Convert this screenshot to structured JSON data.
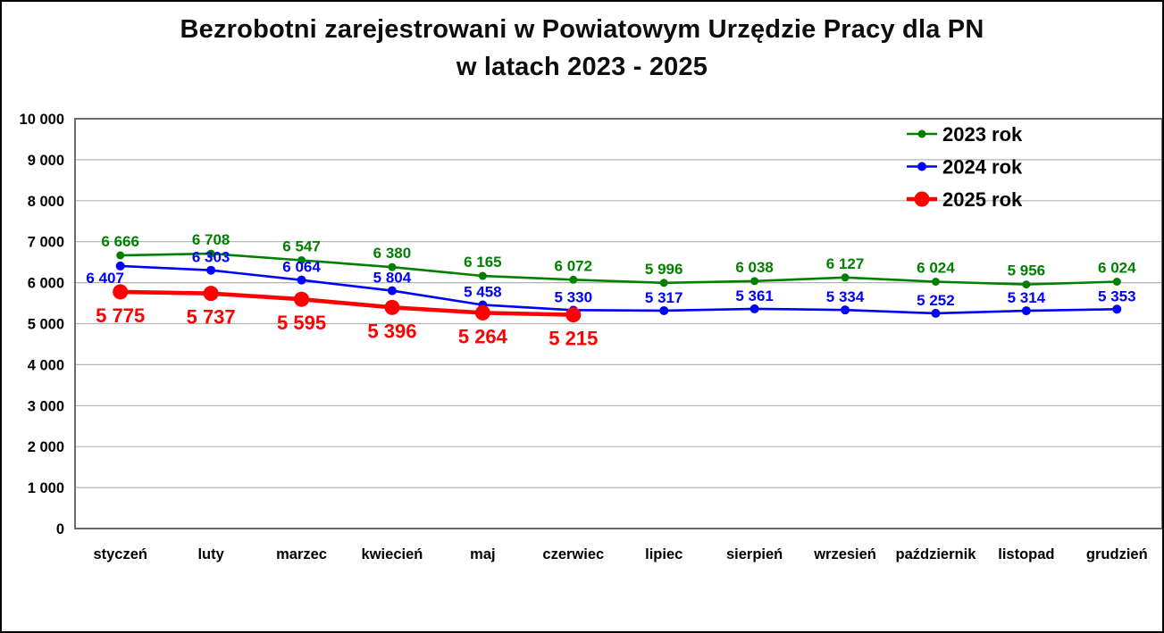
{
  "title": {
    "line1": "Bezrobotni zarejestrowani w Powiatowym Urzędzie Pracy dla PN",
    "line2": "w latach 2023 - 2025"
  },
  "chart_data": {
    "type": "line",
    "categories": [
      "styczeń",
      "luty",
      "marzec",
      "kwiecień",
      "maj",
      "czerwiec",
      "lipiec",
      "sierpień",
      "wrzesień",
      "październik",
      "listopad",
      "grudzień"
    ],
    "series": [
      {
        "name": "2023 rok",
        "color": "#008000",
        "values": [
          6666,
          6708,
          6547,
          6380,
          6165,
          6072,
          5996,
          6038,
          6127,
          6024,
          5956,
          6024
        ]
      },
      {
        "name": "2024 rok",
        "color": "#0000FF",
        "values": [
          6407,
          6303,
          6064,
          5804,
          5458,
          5330,
          5317,
          5361,
          5334,
          5252,
          5314,
          5353
        ]
      },
      {
        "name": "2025 rok",
        "color": "#FF0000",
        "values": [
          5775,
          5737,
          5595,
          5396,
          5264,
          5215
        ]
      }
    ],
    "ylim": [
      0,
      10000
    ],
    "ytick_step": 1000,
    "number_format": "space-thousands",
    "grid": true,
    "legend_position": "top-right",
    "xlabel": "",
    "ylabel": "",
    "colors": {
      "gridline": "#b3b3b3",
      "plot_border": "#6b6b6b",
      "axis_text": "#000000"
    }
  }
}
